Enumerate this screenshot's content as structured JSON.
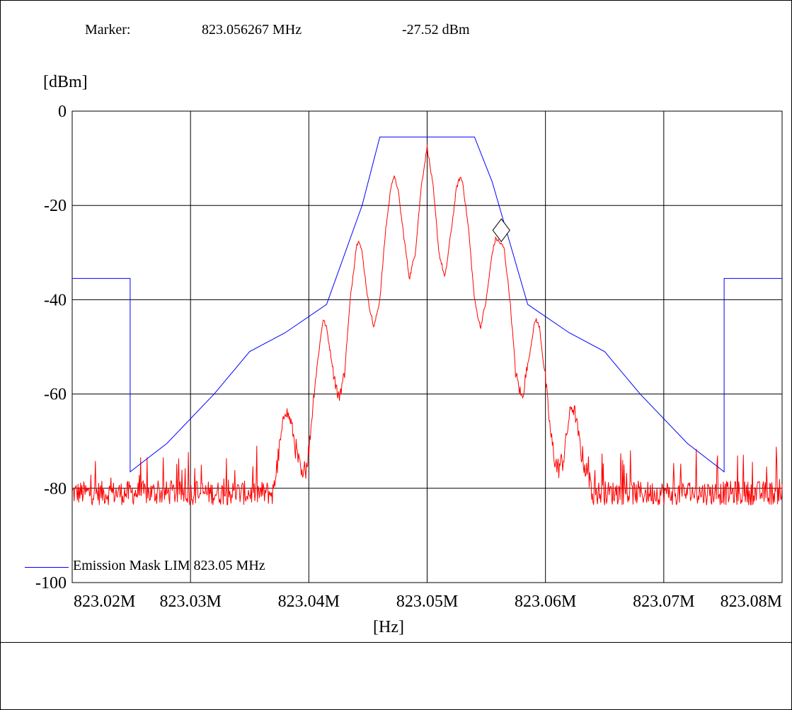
{
  "marker": {
    "label": "Marker:",
    "frequency": "823.056267 MHz",
    "level": "-27.52 dBm"
  },
  "legend": {
    "label": "Emission Mask LIM  823.05 MHz"
  },
  "colors": {
    "mask": "#0000ff",
    "spectrum": "#ff0000",
    "grid": "#000000"
  },
  "chart_data": {
    "type": "line",
    "xlabel": "[Hz]",
    "ylabel": "[dBm]",
    "xlim": [
      823.02,
      823.08
    ],
    "ylim": [
      -100,
      0
    ],
    "grid": true,
    "legend_placement": "bottom-left",
    "x_ticks": [
      {
        "value": 823.02,
        "label": "823.02M"
      },
      {
        "value": 823.03,
        "label": "823.03M"
      },
      {
        "value": 823.04,
        "label": "823.04M"
      },
      {
        "value": 823.05,
        "label": "823.05M"
      },
      {
        "value": 823.06,
        "label": "823.06M"
      },
      {
        "value": 823.07,
        "label": "823.07M"
      },
      {
        "value": 823.08,
        "label": "823.08M"
      }
    ],
    "y_ticks": [
      {
        "value": 0,
        "label": "0"
      },
      {
        "value": -20,
        "label": "-20"
      },
      {
        "value": -40,
        "label": "-40"
      },
      {
        "value": -60,
        "label": "-60"
      },
      {
        "value": -80,
        "label": "-80"
      },
      {
        "value": -100,
        "label": "-100"
      }
    ],
    "marker_point": {
      "x": 823.056267,
      "y": -27.52
    },
    "series": [
      {
        "name": "Emission Mask LIM  823.05 MHz",
        "kind": "mask",
        "x": [
          823.02,
          823.0249,
          823.0249,
          823.028,
          823.032,
          823.035,
          823.038,
          823.0415,
          823.0445,
          823.046,
          823.054,
          823.0555,
          823.0585,
          823.062,
          823.065,
          823.068,
          823.072,
          823.0751,
          823.0751,
          823.08
        ],
        "y": [
          -35.5,
          -35.5,
          -76.5,
          -70.5,
          -60,
          -51,
          -47,
          -41,
          -20,
          -5.5,
          -5.5,
          -15,
          -41,
          -47,
          -51,
          -60,
          -70.5,
          -76.5,
          -35.5,
          -35.5
        ]
      },
      {
        "kind": "spectrum",
        "noise_floor": -81,
        "points": [
          [
            823.02,
            -81
          ],
          [
            823.037,
            -81
          ],
          [
            823.0375,
            -72
          ],
          [
            823.038,
            -63
          ],
          [
            823.0385,
            -66
          ],
          [
            823.039,
            -73
          ],
          [
            823.0395,
            -79
          ],
          [
            823.04,
            -72
          ],
          [
            823.0405,
            -58
          ],
          [
            823.041,
            -48
          ],
          [
            823.0412,
            -44
          ],
          [
            823.0415,
            -46
          ],
          [
            823.042,
            -54
          ],
          [
            823.0425,
            -61
          ],
          [
            823.043,
            -56
          ],
          [
            823.0435,
            -40
          ],
          [
            823.044,
            -29
          ],
          [
            823.0442,
            -27
          ],
          [
            823.0445,
            -30
          ],
          [
            823.045,
            -40
          ],
          [
            823.0455,
            -46
          ],
          [
            823.046,
            -40
          ],
          [
            823.0465,
            -25
          ],
          [
            823.047,
            -15
          ],
          [
            823.0472,
            -14
          ],
          [
            823.0475,
            -16
          ],
          [
            823.048,
            -26
          ],
          [
            823.0485,
            -35.5
          ],
          [
            823.049,
            -30
          ],
          [
            823.0495,
            -16
          ],
          [
            823.05,
            -7.5
          ],
          [
            823.0505,
            -16
          ],
          [
            823.051,
            -30
          ],
          [
            823.0515,
            -35.5
          ],
          [
            823.052,
            -26
          ],
          [
            823.0525,
            -16
          ],
          [
            823.0528,
            -14
          ],
          [
            823.053,
            -15
          ],
          [
            823.0535,
            -25
          ],
          [
            823.054,
            -40
          ],
          [
            823.0545,
            -46
          ],
          [
            823.055,
            -40
          ],
          [
            823.0555,
            -30
          ],
          [
            823.0558,
            -27
          ],
          [
            823.056,
            -27.5
          ],
          [
            823.0565,
            -29
          ],
          [
            823.057,
            -40
          ],
          [
            823.0575,
            -56
          ],
          [
            823.058,
            -61
          ],
          [
            823.0585,
            -54
          ],
          [
            823.059,
            -46
          ],
          [
            823.0592,
            -44
          ],
          [
            823.0595,
            -46
          ],
          [
            823.06,
            -57
          ],
          [
            823.0605,
            -70
          ],
          [
            823.061,
            -76
          ],
          [
            823.0615,
            -74
          ],
          [
            823.062,
            -65
          ],
          [
            823.0622,
            -62.5
          ],
          [
            823.0625,
            -64
          ],
          [
            823.063,
            -72
          ],
          [
            823.0635,
            -77
          ],
          [
            823.064,
            -81
          ],
          [
            823.08,
            -81
          ]
        ]
      }
    ]
  }
}
